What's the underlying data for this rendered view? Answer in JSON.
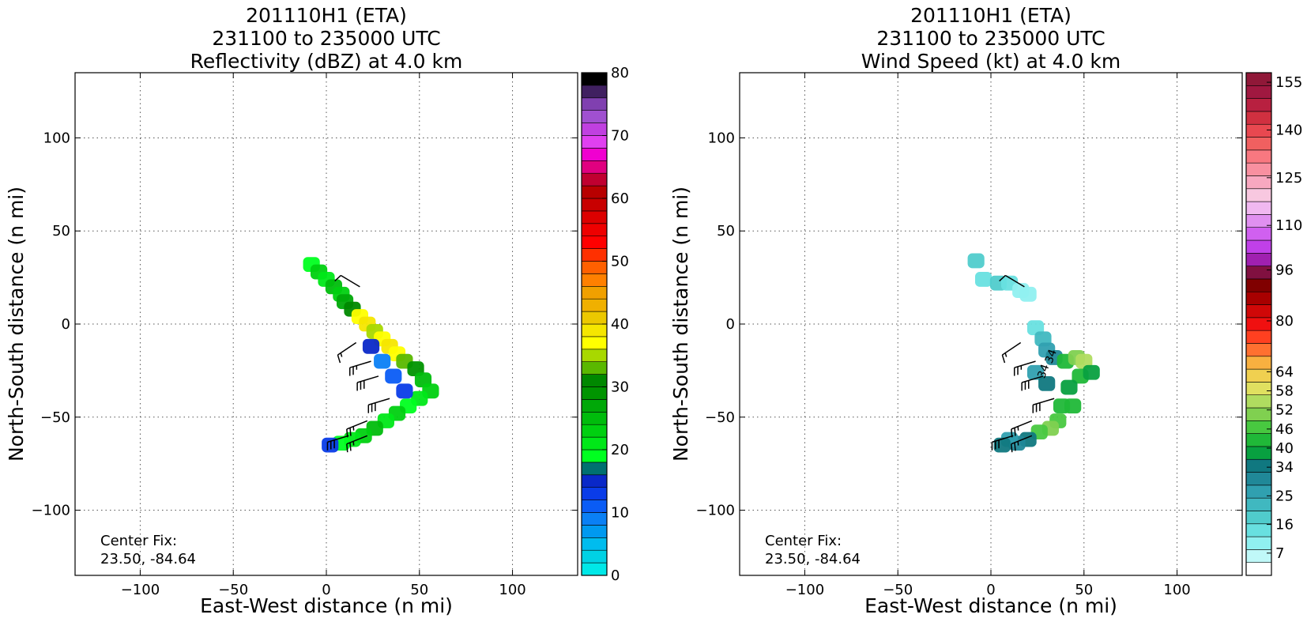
{
  "chart_data": [
    {
      "type": "heatmap",
      "title": [
        "201110H1 (ETA)",
        "231100 to 235000 UTC",
        "Reflectivity (dBZ) at 4.0 km"
      ],
      "xlabel": "East-West distance (n mi)",
      "ylabel": "North-South distance (n mi)",
      "xlim": [
        -135,
        135
      ],
      "ylim": [
        -135,
        135
      ],
      "xticks": [
        -100,
        -50,
        0,
        50,
        100
      ],
      "yticks": [
        -100,
        -50,
        0,
        50,
        100
      ],
      "grid": true,
      "annotation": [
        "Center Fix:",
        "23.50, -84.64"
      ],
      "colorbar": {
        "min": 0,
        "max": 80,
        "tick_values": [
          0,
          10,
          20,
          30,
          40,
          50,
          60,
          70,
          80
        ],
        "tick_labels": [
          "0",
          "10",
          "20",
          "30",
          "40",
          "50",
          "60",
          "70",
          "80"
        ],
        "colors": [
          "#00e8e8",
          "#00d2e4",
          "#00bcee",
          "#0099f0",
          "#0a80f5",
          "#0a5cf5",
          "#0a3ce8",
          "#0a28c8",
          "#007070",
          "#00ff20",
          "#00e818",
          "#00d010",
          "#00bc0c",
          "#00a808",
          "#009400",
          "#008800",
          "#5ab800",
          "#a8d800",
          "#ffff00",
          "#f5e600",
          "#ecc800",
          "#f0b000",
          "#f0a000",
          "#ff8000",
          "#ff6000",
          "#ff3000",
          "#ff0000",
          "#ee0000",
          "#dc0000",
          "#c80000",
          "#b80000",
          "#c00030",
          "#e00080",
          "#f000d0",
          "#e040f0",
          "#c040e0",
          "#a050d0",
          "#8040b0",
          "#402060",
          "#000000"
        ]
      },
      "storm_field": [
        {
          "x": -8,
          "y": 32,
          "v": 18
        },
        {
          "x": -4,
          "y": 28,
          "v": 22
        },
        {
          "x": 0,
          "y": 24,
          "v": 20
        },
        {
          "x": 4,
          "y": 20,
          "v": 24
        },
        {
          "x": 8,
          "y": 16,
          "v": 22
        },
        {
          "x": 10,
          "y": 12,
          "v": 26
        },
        {
          "x": 14,
          "y": 8,
          "v": 30
        },
        {
          "x": 18,
          "y": 4,
          "v": 36
        },
        {
          "x": 22,
          "y": 0,
          "v": 38
        },
        {
          "x": 26,
          "y": -4,
          "v": 34
        },
        {
          "x": 30,
          "y": -8,
          "v": 36
        },
        {
          "x": 34,
          "y": -12,
          "v": 38
        },
        {
          "x": 38,
          "y": -16,
          "v": 36
        },
        {
          "x": 42,
          "y": -20,
          "v": 32
        },
        {
          "x": 48,
          "y": -24,
          "v": 28
        },
        {
          "x": 52,
          "y": -30,
          "v": 24
        },
        {
          "x": 56,
          "y": -36,
          "v": 22
        },
        {
          "x": 50,
          "y": -40,
          "v": 20
        },
        {
          "x": 44,
          "y": -44,
          "v": 18
        },
        {
          "x": 38,
          "y": -48,
          "v": 22
        },
        {
          "x": 32,
          "y": -52,
          "v": 20
        },
        {
          "x": 26,
          "y": -56,
          "v": 24
        },
        {
          "x": 20,
          "y": -60,
          "v": 22
        },
        {
          "x": 14,
          "y": -62,
          "v": 20
        },
        {
          "x": 8,
          "y": -64,
          "v": 18
        },
        {
          "x": 2,
          "y": -65,
          "v": 12
        },
        {
          "x": 30,
          "y": -20,
          "v": 8
        },
        {
          "x": 36,
          "y": -28,
          "v": 10
        },
        {
          "x": 42,
          "y": -36,
          "v": 12
        },
        {
          "x": 24,
          "y": -12,
          "v": 14
        }
      ],
      "barbs": [
        {
          "x": 18,
          "y": 20,
          "u": 5,
          "v": -3,
          "speed": 10
        },
        {
          "x": 16,
          "y": -10,
          "u": 6,
          "v": 4,
          "speed": 15
        },
        {
          "x": 24,
          "y": -20,
          "u": 10,
          "v": 3,
          "speed": 25
        },
        {
          "x": 28,
          "y": -28,
          "u": 10,
          "v": 3,
          "speed": 30
        },
        {
          "x": 34,
          "y": -40,
          "u": 10,
          "v": 3,
          "speed": 30
        },
        {
          "x": 22,
          "y": -52,
          "u": 10,
          "v": 4,
          "speed": 25
        },
        {
          "x": 12,
          "y": -60,
          "u": 10,
          "v": 3,
          "speed": 30
        },
        {
          "x": 22,
          "y": -60,
          "u": 10,
          "v": 4,
          "speed": 25
        }
      ]
    },
    {
      "type": "heatmap",
      "title": [
        "201110H1 (ETA)",
        "231100 to 235000 UTC",
        "Wind Speed (kt) at 4.0 km"
      ],
      "xlabel": "East-West distance (n mi)",
      "ylabel": "North-South distance (n mi)",
      "xlim": [
        -135,
        135
      ],
      "ylim": [
        -135,
        135
      ],
      "xticks": [
        -100,
        -50,
        0,
        50,
        100
      ],
      "yticks": [
        -100,
        -50,
        0,
        50,
        100
      ],
      "grid": true,
      "annotation": [
        "Center Fix:",
        "23.50, -84.64"
      ],
      "contour_labels": [
        "34",
        "34"
      ],
      "colorbar": {
        "min": 0,
        "max": 158,
        "tick_values": [
          7,
          16,
          25,
          34,
          40,
          46,
          52,
          58,
          64,
          80,
          96,
          110,
          125,
          140,
          155
        ],
        "tick_labels": [
          "7",
          "16",
          "25",
          "34",
          "40",
          "46",
          "52",
          "58",
          "64",
          "80",
          "96",
          "110",
          "125",
          "140",
          "155"
        ],
        "colors": [
          "#ffffff",
          "#c0f8f8",
          "#90f0f0",
          "#68e0e0",
          "#50cccc",
          "#40b8c0",
          "#30a0b0",
          "#208898",
          "#107880",
          "#08a040",
          "#20b838",
          "#48c840",
          "#80d050",
          "#b0dc60",
          "#e0e060",
          "#f0d050",
          "#f8b040",
          "#ff7030",
          "#ff4020",
          "#f01010",
          "#d00808",
          "#a80000",
          "#800000",
          "#801040",
          "#a020b0",
          "#c040e8",
          "#d060f0",
          "#e090f0",
          "#f0b8f0",
          "#f8c8e0",
          "#f8a8c0",
          "#f890a0",
          "#f87880",
          "#f06060",
          "#e84850",
          "#d03040",
          "#b82040",
          "#a01840",
          "#901838"
        ]
      },
      "storm_field": [
        {
          "x": -8,
          "y": 34,
          "v": 20
        },
        {
          "x": -4,
          "y": 24,
          "v": 14
        },
        {
          "x": 4,
          "y": 22,
          "v": 18
        },
        {
          "x": 10,
          "y": 22,
          "v": 14
        },
        {
          "x": 16,
          "y": 18,
          "v": 12
        },
        {
          "x": 20,
          "y": 16,
          "v": 10
        },
        {
          "x": 24,
          "y": -2,
          "v": 16
        },
        {
          "x": 28,
          "y": -8,
          "v": 22
        },
        {
          "x": 30,
          "y": -14,
          "v": 28
        },
        {
          "x": 34,
          "y": -18,
          "v": 32
        },
        {
          "x": 40,
          "y": -20,
          "v": 42
        },
        {
          "x": 46,
          "y": -18,
          "v": 50
        },
        {
          "x": 50,
          "y": -20,
          "v": 56
        },
        {
          "x": 48,
          "y": -28,
          "v": 44
        },
        {
          "x": 54,
          "y": -26,
          "v": 40
        },
        {
          "x": 42,
          "y": -34,
          "v": 38
        },
        {
          "x": 38,
          "y": -44,
          "v": 42
        },
        {
          "x": 44,
          "y": -44,
          "v": 44
        },
        {
          "x": 36,
          "y": -52,
          "v": 46
        },
        {
          "x": 32,
          "y": -56,
          "v": 52
        },
        {
          "x": 26,
          "y": -58,
          "v": 48
        },
        {
          "x": 20,
          "y": -62,
          "v": 36
        },
        {
          "x": 14,
          "y": -64,
          "v": 30
        },
        {
          "x": 10,
          "y": -62,
          "v": 28
        },
        {
          "x": 6,
          "y": -65,
          "v": 34
        },
        {
          "x": 24,
          "y": -26,
          "v": 26
        },
        {
          "x": 30,
          "y": -32,
          "v": 34
        }
      ],
      "barbs": [
        {
          "x": 18,
          "y": 20,
          "u": 5,
          "v": -3,
          "speed": 10
        },
        {
          "x": 16,
          "y": -10,
          "u": 6,
          "v": 4,
          "speed": 15
        },
        {
          "x": 24,
          "y": -20,
          "u": 10,
          "v": 3,
          "speed": 25
        },
        {
          "x": 28,
          "y": -28,
          "u": 10,
          "v": 3,
          "speed": 30
        },
        {
          "x": 34,
          "y": -40,
          "u": 10,
          "v": 3,
          "speed": 30
        },
        {
          "x": 22,
          "y": -52,
          "u": 10,
          "v": 4,
          "speed": 25
        },
        {
          "x": 12,
          "y": -60,
          "u": 10,
          "v": 3,
          "speed": 30
        },
        {
          "x": 22,
          "y": -60,
          "u": 10,
          "v": 4,
          "speed": 25
        }
      ]
    }
  ]
}
